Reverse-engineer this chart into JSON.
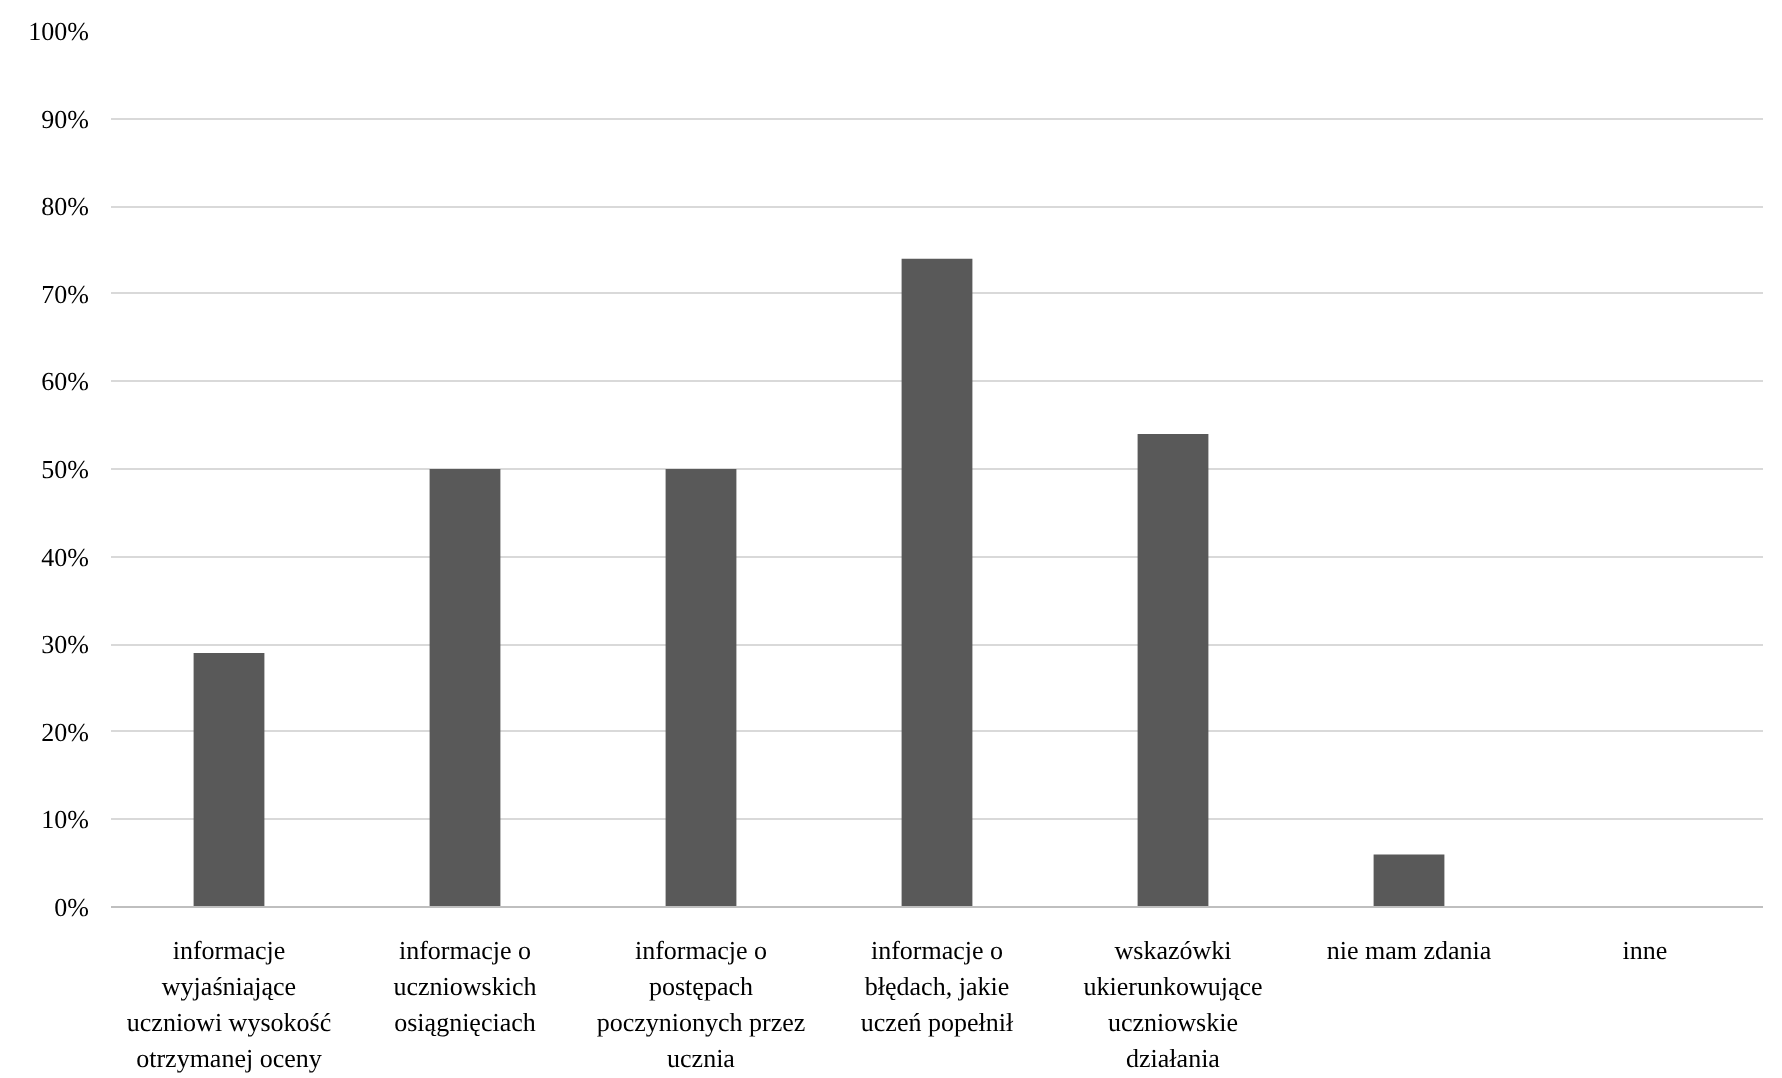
{
  "chart_data": {
    "type": "bar",
    "categories": [
      "informacje wyjaśniające uczniowi wysokość otrzymanej oceny",
      "informacje o uczniowskich osiągnięciach",
      "informacje o postępach poczynionych przez ucznia",
      "informacje o błędach, jakie uczeń popełnił",
      "wskazówki ukierunkowujące uczniowskie działania",
      "nie mam zdania",
      "inne"
    ],
    "values": [
      29,
      50,
      50,
      74,
      54,
      6,
      0
    ],
    "color": "#595959",
    "ylim": [
      0,
      100
    ],
    "yticks": [
      {
        "value": 0,
        "label": "0%"
      },
      {
        "value": 10,
        "label": "10%"
      },
      {
        "value": 20,
        "label": "20%"
      },
      {
        "value": 30,
        "label": "30%"
      },
      {
        "value": 40,
        "label": "40%"
      },
      {
        "value": 50,
        "label": "50%"
      },
      {
        "value": 60,
        "label": "60%"
      },
      {
        "value": 70,
        "label": "70%"
      },
      {
        "value": 80,
        "label": "80%"
      },
      {
        "value": 90,
        "label": "90%"
      },
      {
        "value": 100,
        "label": "100%"
      }
    ],
    "grid": "y"
  }
}
